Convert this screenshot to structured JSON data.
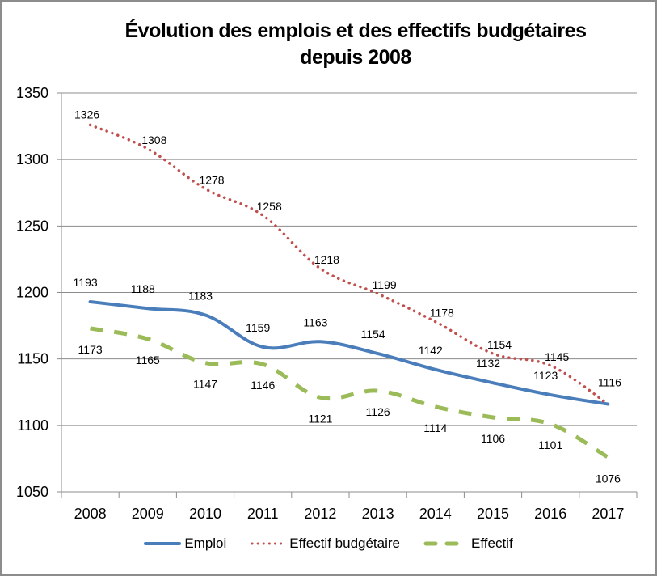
{
  "chart_data": {
    "type": "line",
    "title_line1": "Évolution des emplois et des effectifs budgétaires",
    "title_line2": "depuis 2008",
    "xlabel": "",
    "ylabel": "",
    "categories": [
      "2008",
      "2009",
      "2010",
      "2011",
      "2012",
      "2013",
      "2014",
      "2015",
      "2016",
      "2017"
    ],
    "ylim": [
      1050,
      1350
    ],
    "yticks": [
      1050,
      1100,
      1150,
      1200,
      1250,
      1300,
      1350
    ],
    "grid": true,
    "legend_position": "bottom",
    "series": [
      {
        "name": "Emploi",
        "style": "solid",
        "color": "#4a7ebb",
        "values": [
          1193,
          1188,
          1183,
          1159,
          1163,
          1154,
          1142,
          1132,
          1123,
          1116
        ]
      },
      {
        "name": "Effectif budgétaire",
        "style": "dotted",
        "color": "#c0504d",
        "values": [
          1326,
          1308,
          1278,
          1258,
          1218,
          1199,
          1178,
          1154,
          1145,
          1116
        ]
      },
      {
        "name": "Effectif",
        "style": "dashed",
        "color": "#9bbb59",
        "values": [
          1173,
          1165,
          1147,
          1146,
          1121,
          1126,
          1114,
          1106,
          1101,
          1076
        ]
      }
    ]
  }
}
